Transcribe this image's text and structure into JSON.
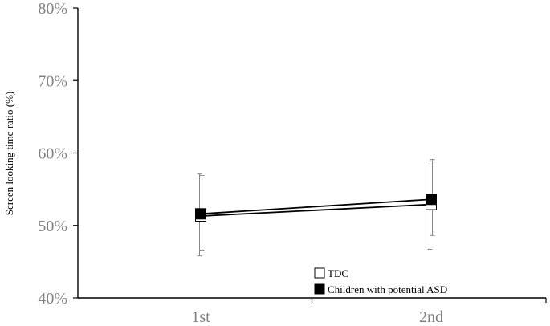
{
  "chart_data": {
    "type": "line",
    "title": "",
    "xlabel": "",
    "ylabel": "Screen looking time ratio (%)",
    "categories": [
      "1st",
      "2nd"
    ],
    "yticks": [
      "40%",
      "50%",
      "60%",
      "70%",
      "80%"
    ],
    "ylim": [
      40,
      80
    ],
    "grid": false,
    "legend_position": "bottom-right",
    "series": [
      {
        "name": "TDC",
        "marker": "hollow-square",
        "color": "#000000",
        "values": [
          51.3,
          52.9
        ],
        "error_low": [
          46.6,
          48.6
        ],
        "error_high": [
          56.9,
          59.1
        ]
      },
      {
        "name": "Children with potential ASD",
        "marker": "filled-square",
        "color": "#000000",
        "values": [
          51.6,
          53.6
        ],
        "error_low": [
          45.8,
          46.7
        ],
        "error_high": [
          57.1,
          58.9
        ]
      }
    ]
  }
}
